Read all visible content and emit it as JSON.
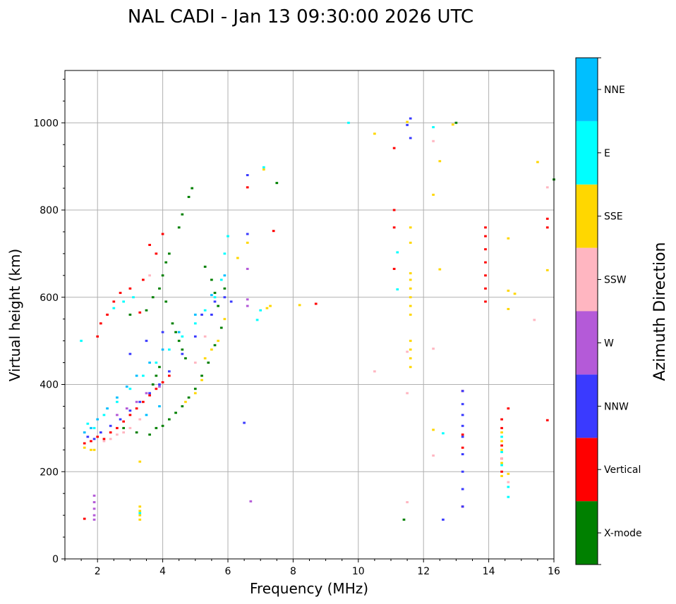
{
  "chart_data": {
    "type": "scatter",
    "title": "NAL CADI - Jan 13 09:30:00 2026 UTC",
    "xlabel": "Frequency (MHz)",
    "ylabel": "Virtual height (km)",
    "xlim": [
      1,
      16
    ],
    "ylim": [
      0,
      1120
    ],
    "xticks": [
      2,
      4,
      6,
      8,
      10,
      12,
      14,
      16
    ],
    "yticks": [
      0,
      200,
      400,
      600,
      800,
      1000
    ],
    "grid": true,
    "cell_size": {
      "freq_mhz": 0.05,
      "height_km": 3
    },
    "colorbar": {
      "label": "Azimuth Direction",
      "categories": [
        "X-mode",
        "Vertical",
        "NNW",
        "W",
        "SSW",
        "SSE",
        "E",
        "NNE"
      ],
      "colors": [
        "#008000",
        "#ff0000",
        "#3a3aff",
        "#b45ad8",
        "#ffb6c1",
        "#ffd700",
        "#00ffff",
        "#00bfff"
      ]
    },
    "series": [
      {
        "name": "X-mode",
        "points": [
          [
            3.6,
            285
          ],
          [
            3.8,
            300
          ],
          [
            4.0,
            305
          ],
          [
            4.2,
            320
          ],
          [
            4.4,
            335
          ],
          [
            4.6,
            350
          ],
          [
            4.8,
            370
          ],
          [
            5.0,
            390
          ],
          [
            5.2,
            420
          ],
          [
            5.4,
            450
          ],
          [
            5.6,
            490
          ],
          [
            5.8,
            530
          ],
          [
            4.8,
            830
          ],
          [
            4.9,
            850
          ],
          [
            4.6,
            790
          ],
          [
            4.5,
            760
          ],
          [
            4.2,
            700
          ],
          [
            4.1,
            680
          ],
          [
            4.0,
            650
          ],
          [
            3.9,
            620
          ],
          [
            3.7,
            600
          ],
          [
            3.5,
            570
          ],
          [
            5.3,
            670
          ],
          [
            5.5,
            640
          ],
          [
            5.6,
            610
          ],
          [
            5.7,
            580
          ],
          [
            4.3,
            540
          ],
          [
            4.4,
            520
          ],
          [
            4.5,
            500
          ],
          [
            4.6,
            480
          ],
          [
            4.7,
            460
          ],
          [
            3.9,
            440
          ],
          [
            3.8,
            420
          ],
          [
            3.7,
            400
          ],
          [
            13.0,
            1000
          ],
          [
            11.4,
            90
          ],
          [
            7.5,
            862
          ],
          [
            16.0,
            870
          ],
          [
            5.9,
            620
          ],
          [
            4.1,
            590
          ],
          [
            3.0,
            560
          ],
          [
            2.8,
            300
          ],
          [
            3.2,
            290
          ]
        ]
      },
      {
        "name": "Vertical",
        "points": [
          [
            1.6,
            265
          ],
          [
            1.8,
            270
          ],
          [
            2.0,
            280
          ],
          [
            2.2,
            275
          ],
          [
            2.4,
            290
          ],
          [
            2.6,
            300
          ],
          [
            2.8,
            315
          ],
          [
            3.0,
            330
          ],
          [
            3.2,
            345
          ],
          [
            3.4,
            360
          ],
          [
            3.6,
            375
          ],
          [
            3.8,
            390
          ],
          [
            4.0,
            405
          ],
          [
            4.2,
            420
          ],
          [
            2.0,
            510
          ],
          [
            2.1,
            540
          ],
          [
            2.3,
            560
          ],
          [
            2.5,
            590
          ],
          [
            2.7,
            610
          ],
          [
            3.0,
            620
          ],
          [
            3.4,
            640
          ],
          [
            3.8,
            700
          ],
          [
            4.0,
            745
          ],
          [
            3.6,
            720
          ],
          [
            8.7,
            585
          ],
          [
            13.9,
            590
          ],
          [
            13.9,
            620
          ],
          [
            13.9,
            650
          ],
          [
            13.9,
            680
          ],
          [
            13.9,
            710
          ],
          [
            13.9,
            740
          ],
          [
            13.9,
            760
          ],
          [
            14.4,
            320
          ],
          [
            14.4,
            300
          ],
          [
            14.4,
            260
          ],
          [
            14.4,
            230
          ],
          [
            14.4,
            200
          ],
          [
            14.6,
            345
          ],
          [
            15.8,
            318
          ],
          [
            15.8,
            780
          ],
          [
            15.8,
            760
          ],
          [
            11.1,
            942
          ],
          [
            11.1,
            800
          ],
          [
            11.1,
            760
          ],
          [
            11.1,
            665
          ],
          [
            13.2,
            285
          ],
          [
            13.2,
            255
          ],
          [
            13.2,
            120
          ],
          [
            13.2,
            385
          ],
          [
            7.4,
            752
          ],
          [
            6.6,
            852
          ],
          [
            1.6,
            92
          ],
          [
            3.3,
            565
          ]
        ]
      },
      {
        "name": "NNW",
        "points": [
          [
            1.7,
            280
          ],
          [
            1.9,
            275
          ],
          [
            2.1,
            290
          ],
          [
            2.4,
            305
          ],
          [
            2.7,
            320
          ],
          [
            3.0,
            340
          ],
          [
            3.3,
            360
          ],
          [
            3.6,
            380
          ],
          [
            3.9,
            400
          ],
          [
            4.2,
            430
          ],
          [
            4.6,
            470
          ],
          [
            5.0,
            510
          ],
          [
            5.5,
            560
          ],
          [
            5.9,
            600
          ],
          [
            6.1,
            590
          ],
          [
            6.5,
            312
          ],
          [
            6.6,
            880
          ],
          [
            6.6,
            745
          ],
          [
            11.6,
            1010
          ],
          [
            11.6,
            965
          ],
          [
            11.5,
            995
          ],
          [
            13.2,
            120
          ],
          [
            13.2,
            160
          ],
          [
            13.2,
            200
          ],
          [
            13.2,
            240
          ],
          [
            13.2,
            280
          ],
          [
            13.2,
            305
          ],
          [
            13.2,
            330
          ],
          [
            13.2,
            355
          ],
          [
            13.2,
            385
          ],
          [
            12.6,
            90
          ],
          [
            3.0,
            470
          ],
          [
            3.5,
            500
          ],
          [
            4.0,
            520
          ],
          [
            5.2,
            560
          ],
          [
            5.6,
            590
          ]
        ]
      },
      {
        "name": "W",
        "points": [
          [
            1.9,
            145
          ],
          [
            1.9,
            130
          ],
          [
            1.9,
            115
          ],
          [
            1.9,
            100
          ],
          [
            1.9,
            90
          ],
          [
            2.6,
            330
          ],
          [
            2.9,
            345
          ],
          [
            3.2,
            360
          ],
          [
            3.5,
            380
          ],
          [
            3.9,
            395
          ],
          [
            6.6,
            595
          ],
          [
            6.6,
            580
          ],
          [
            6.7,
            132
          ],
          [
            6.6,
            665
          ]
        ]
      },
      {
        "name": "SSW",
        "points": [
          [
            2.2,
            270
          ],
          [
            2.4,
            275
          ],
          [
            2.6,
            285
          ],
          [
            2.8,
            290
          ],
          [
            3.0,
            300
          ],
          [
            3.3,
            320
          ],
          [
            3.6,
            650
          ],
          [
            11.5,
            380
          ],
          [
            11.5,
            130
          ],
          [
            11.5,
            475
          ],
          [
            10.5,
            430
          ],
          [
            12.3,
            958
          ],
          [
            12.3,
            482
          ],
          [
            12.3,
            237
          ],
          [
            15.4,
            548
          ],
          [
            15.8,
            852
          ],
          [
            14.6,
            176
          ],
          [
            14.4,
            230
          ],
          [
            5.0,
            450
          ],
          [
            5.3,
            510
          ]
        ]
      },
      {
        "name": "SSE",
        "points": [
          [
            1.6,
            255
          ],
          [
            1.8,
            250
          ],
          [
            1.9,
            250
          ],
          [
            3.3,
            223
          ],
          [
            3.3,
            120
          ],
          [
            3.3,
            110
          ],
          [
            3.3,
            100
          ],
          [
            3.3,
            90
          ],
          [
            4.7,
            360
          ],
          [
            5.0,
            380
          ],
          [
            5.2,
            410
          ],
          [
            5.3,
            460
          ],
          [
            5.5,
            480
          ],
          [
            5.7,
            500
          ],
          [
            11.6,
            440
          ],
          [
            11.6,
            460
          ],
          [
            11.6,
            480
          ],
          [
            11.6,
            500
          ],
          [
            11.6,
            560
          ],
          [
            11.6,
            580
          ],
          [
            11.6,
            600
          ],
          [
            11.6,
            620
          ],
          [
            11.6,
            640
          ],
          [
            11.6,
            655
          ],
          [
            11.6,
            725
          ],
          [
            11.6,
            760
          ],
          [
            11.5,
            1002
          ],
          [
            10.5,
            975
          ],
          [
            12.3,
            835
          ],
          [
            12.5,
            912
          ],
          [
            12.5,
            664
          ],
          [
            12.3,
            296
          ],
          [
            14.4,
            290
          ],
          [
            14.4,
            270
          ],
          [
            14.4,
            250
          ],
          [
            14.4,
            220
          ],
          [
            14.4,
            190
          ],
          [
            14.6,
            195
          ],
          [
            14.6,
            615
          ],
          [
            14.6,
            573
          ],
          [
            14.6,
            735
          ],
          [
            14.8,
            608
          ],
          [
            15.5,
            910
          ],
          [
            15.8,
            662
          ],
          [
            12.9,
            996
          ],
          [
            7.1,
            893
          ],
          [
            7.2,
            575
          ],
          [
            7.3,
            580
          ],
          [
            8.2,
            582
          ],
          [
            6.6,
            725
          ],
          [
            6.3,
            690
          ],
          [
            5.9,
            550
          ]
        ]
      },
      {
        "name": "E",
        "points": [
          [
            1.7,
            310
          ],
          [
            1.9,
            300
          ],
          [
            2.2,
            330
          ],
          [
            2.6,
            360
          ],
          [
            3.0,
            390
          ],
          [
            3.4,
            420
          ],
          [
            3.8,
            450
          ],
          [
            4.2,
            480
          ],
          [
            4.6,
            510
          ],
          [
            5.0,
            540
          ],
          [
            5.3,
            570
          ],
          [
            5.6,
            600
          ],
          [
            5.8,
            640
          ],
          [
            5.9,
            700
          ],
          [
            6.0,
            740
          ],
          [
            2.5,
            575
          ],
          [
            2.8,
            590
          ],
          [
            3.1,
            600
          ],
          [
            9.7,
            1000
          ],
          [
            11.2,
            618
          ],
          [
            11.2,
            703
          ],
          [
            12.6,
            288
          ],
          [
            14.6,
            165
          ],
          [
            14.6,
            142
          ],
          [
            14.4,
            280
          ],
          [
            14.4,
            245
          ],
          [
            14.4,
            215
          ],
          [
            7.1,
            898
          ],
          [
            6.9,
            548
          ],
          [
            7.0,
            570
          ],
          [
            12.3,
            990
          ],
          [
            3.3,
            105
          ],
          [
            1.5,
            500
          ]
        ]
      },
      {
        "name": "NNE",
        "points": [
          [
            1.6,
            290
          ],
          [
            1.8,
            300
          ],
          [
            2.0,
            320
          ],
          [
            2.3,
            345
          ],
          [
            2.6,
            370
          ],
          [
            2.9,
            395
          ],
          [
            3.2,
            420
          ],
          [
            3.6,
            450
          ],
          [
            4.0,
            480
          ],
          [
            4.5,
            520
          ],
          [
            5.0,
            560
          ],
          [
            5.5,
            605
          ],
          [
            5.9,
            650
          ],
          [
            3.5,
            330
          ],
          [
            3.9,
            350
          ]
        ]
      }
    ]
  }
}
